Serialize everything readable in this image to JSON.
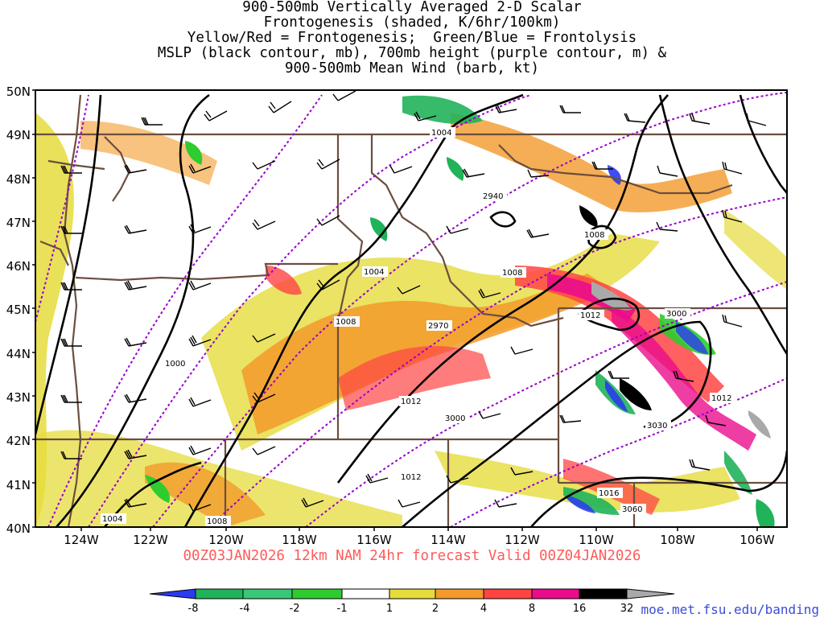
{
  "title_lines": [
    "900-500mb Vertically Averaged 2-D Scalar",
    "Frontogenesis (shaded, K/6hr/100km)",
    "Yellow/Red = Frontogenesis;  Green/Blue = Frontolysis",
    "MSLP (black contour, mb), 700mb height (purple contour, m) &",
    "900-500mb Mean Wind (barb, kt)"
  ],
  "lat_labels": [
    "50N",
    "49N",
    "48N",
    "47N",
    "46N",
    "45N",
    "44N",
    "43N",
    "42N",
    "41N",
    "40N"
  ],
  "lon_labels": [
    "124W",
    "122W",
    "120W",
    "118W",
    "116W",
    "114W",
    "112W",
    "110W",
    "108W",
    "106W"
  ],
  "forecast_label": "00Z03JAN2026 12km NAM 24hr forecast Valid 00Z04JAN2026",
  "credit": "moe.met.fsu.edu/banding",
  "colorbar": {
    "ticks": [
      "-8",
      "-4",
      "-2",
      "-1",
      "1",
      "2",
      "4",
      "8",
      "16",
      "32"
    ],
    "colors": [
      "#2a3bf0",
      "#21b35a",
      "#38c878",
      "#2ecc2e",
      "#ffffff",
      "#e5dc3c",
      "#f39a2a",
      "#ff4444",
      "#ea0c8c",
      "#000000",
      "#a9a9a9"
    ]
  },
  "mslp_labels": [
    "1004",
    "1004",
    "1008",
    "1008",
    "1008",
    "1012",
    "1012",
    "1012",
    "1012",
    "1016",
    "1000",
    "1004",
    "1008"
  ],
  "height_labels": [
    "2940",
    "2970",
    "3000",
    "3000",
    "3030",
    "3060"
  ],
  "colors": {
    "mslp": "#000000",
    "height": "#9900cc",
    "borders": "#6b4e3e",
    "wind": "#000000"
  }
}
